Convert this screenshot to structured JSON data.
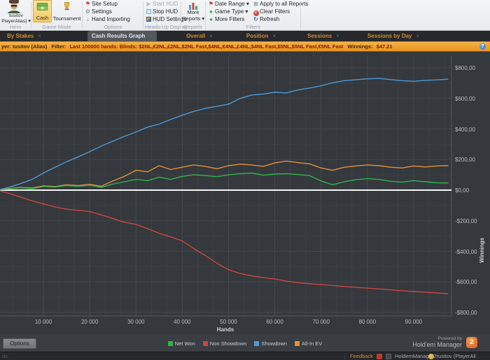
{
  "ribbon": {
    "hero": {
      "line1": "tusitov",
      "line2": "PlayerAlias) ▾",
      "group": "Hero"
    },
    "game_mode": {
      "cash": "Cash",
      "tournament": "Tournament",
      "group": "Game Mode"
    },
    "options": {
      "items": [
        "Site Setup",
        "Settings",
        "Hand Importing"
      ],
      "group": "Options"
    },
    "hud": {
      "items": [
        "Start HUD",
        "Stop HUD",
        "HUD Settings"
      ],
      "group": "Heads-Up Display"
    },
    "reports": {
      "line1": "More",
      "line2": "Reports ▾",
      "group": "Reports"
    },
    "filters": {
      "col1": [
        "Date Range ▾",
        "Game Type ▾",
        "More Filters"
      ],
      "col2": [
        "Apply to all Reports",
        "Clear Filters",
        "Refresh"
      ],
      "group": "Filters"
    }
  },
  "icons": {
    "site_setup": "⚑",
    "settings": "⚙",
    "hand_importing": "↓",
    "start_hud": "▶",
    "stop_hud_name": "stop-square",
    "hud_settings_name": "hud-grid",
    "date_range": "⚑",
    "game_type": "♠",
    "more_filters": "♠",
    "apply_reports": "⊞",
    "clear_filters": "×",
    "refresh": "↻",
    "info": "?",
    "close": "×"
  },
  "tabs": [
    {
      "label": "By Stakes",
      "active": false
    },
    {
      "label": "Cash Results Graph",
      "active": true
    },
    {
      "label": "Overall",
      "active": false
    },
    {
      "label": "Position",
      "active": false
    },
    {
      "label": "Sessions",
      "active": false
    },
    {
      "label": "Sessions by Day",
      "active": false
    }
  ],
  "filter_bar": {
    "player": "yer: tusitov (Alias)",
    "filter_label": "Filter:",
    "filter_value": "Last 100000 hands: Blinds: $2NL,€2NL,£2NL,$2NL Fast,$4NL,€4NL,£4NL,$4NL Fast,$5NL,$5NL Fast,€5NL Fast",
    "winnings_label": "Winnings:",
    "winnings_value": "$47.21"
  },
  "chart_data": {
    "type": "line",
    "xlabel": "Hands",
    "ylabel": "Winnings",
    "xlim": [
      0,
      97500
    ],
    "ylim": [
      -800,
      800
    ],
    "grid": true,
    "legend_position": "bottom",
    "x_step": 2500,
    "x_tick_values": [
      10000,
      20000,
      30000,
      40000,
      50000,
      60000,
      70000,
      80000,
      90000
    ],
    "x_tick_labels": [
      "10 000",
      "20 000",
      "30 000",
      "40 000",
      "50 000",
      "60 000",
      "70 000",
      "80 000",
      "90 000"
    ],
    "y_ticks": [
      {
        "value": 800,
        "label": "$800,00"
      },
      {
        "value": 600,
        "label": "$600,00"
      },
      {
        "value": 400,
        "label": "$400,00"
      },
      {
        "value": 200,
        "label": "$200,00"
      },
      {
        "value": 0,
        "label": "$0,00"
      },
      {
        "value": -200,
        "label": "-$200,00"
      },
      {
        "value": -400,
        "label": "-$400,00"
      },
      {
        "value": -600,
        "label": "-$600,00"
      },
      {
        "value": -800,
        "label": "-$800,00"
      }
    ],
    "zero_line_value": 0,
    "draw_order": [
      1,
      3,
      0,
      2
    ],
    "series": [
      {
        "name": "Net Won",
        "color": "#2eb44b",
        "values": [
          0,
          8,
          15,
          10,
          24,
          20,
          30,
          25,
          32,
          18,
          40,
          55,
          70,
          62,
          85,
          70,
          90,
          100,
          95,
          88,
          100,
          108,
          112,
          98,
          105,
          108,
          102,
          95,
          60,
          35,
          55,
          68,
          75,
          70,
          58,
          52,
          62,
          55,
          48,
          47
        ]
      },
      {
        "name": "Non Showdown",
        "color": "#cd4640",
        "values": [
          0,
          -20,
          -45,
          -70,
          -90,
          -110,
          -125,
          -132,
          -140,
          -162,
          -186,
          -210,
          -224,
          -252,
          -282,
          -306,
          -332,
          -382,
          -428,
          -478,
          -520,
          -545,
          -561,
          -572,
          -581,
          -595,
          -605,
          -612,
          -618,
          -623,
          -630,
          -636,
          -641,
          -646,
          -652,
          -658,
          -663,
          -668,
          -672,
          -678
        ]
      },
      {
        "name": "Showdown",
        "color": "#4d9ad9",
        "values": [
          0,
          18,
          42,
          70,
          112,
          150,
          185,
          218,
          252,
          288,
          320,
          352,
          380,
          412,
          432,
          462,
          490,
          515,
          535,
          548,
          562,
          600,
          622,
          628,
          640,
          636,
          655,
          668,
          682,
          702,
          716,
          722,
          728,
          731,
          723,
          716,
          712,
          718,
          721,
          726
        ]
      },
      {
        "name": "All-In EV",
        "color": "#e2903b",
        "values": [
          0,
          10,
          18,
          14,
          28,
          24,
          35,
          30,
          38,
          25,
          60,
          90,
          130,
          120,
          160,
          135,
          150,
          165,
          155,
          140,
          160,
          170,
          165,
          155,
          178,
          190,
          180,
          172,
          145,
          130,
          150,
          158,
          165,
          160,
          150,
          145,
          158,
          152,
          158,
          160
        ]
      }
    ]
  },
  "bottom": {
    "options_button": "Options",
    "powered_by": "Powered by",
    "brand": "Hold'em Manager",
    "brand_badge": "2"
  },
  "status_bar": {
    "left_fragment": "ds",
    "feedback": "Feedback",
    "app": "HoldemManager2",
    "user": "tusitov (PlayerAli"
  },
  "colors": {
    "chart_bg": "#35383c",
    "grid_major": "#45494f",
    "grid_minor": "#3d4146",
    "zero_line": "#f5f6f7",
    "axis_line": "#55585d",
    "tab_active_bg": "#53565b",
    "accent_orange": "#ef9a2d"
  }
}
